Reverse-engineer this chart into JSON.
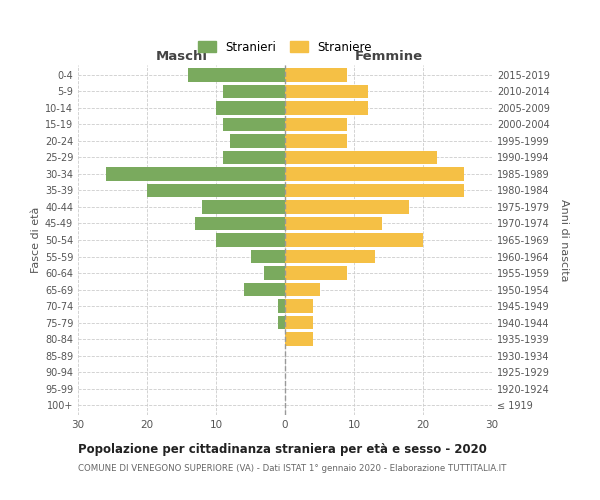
{
  "age_groups": [
    "100+",
    "95-99",
    "90-94",
    "85-89",
    "80-84",
    "75-79",
    "70-74",
    "65-69",
    "60-64",
    "55-59",
    "50-54",
    "45-49",
    "40-44",
    "35-39",
    "30-34",
    "25-29",
    "20-24",
    "15-19",
    "10-14",
    "5-9",
    "0-4"
  ],
  "birth_years": [
    "≤ 1919",
    "1920-1924",
    "1925-1929",
    "1930-1934",
    "1935-1939",
    "1940-1944",
    "1945-1949",
    "1950-1954",
    "1955-1959",
    "1960-1964",
    "1965-1969",
    "1970-1974",
    "1975-1979",
    "1980-1984",
    "1985-1989",
    "1990-1994",
    "1995-1999",
    "2000-2004",
    "2005-2009",
    "2010-2014",
    "2015-2019"
  ],
  "males": [
    0,
    0,
    0,
    0,
    0,
    1,
    1,
    6,
    3,
    5,
    10,
    13,
    12,
    20,
    26,
    9,
    8,
    9,
    10,
    9,
    14
  ],
  "females": [
    0,
    0,
    0,
    0,
    4,
    4,
    4,
    5,
    9,
    13,
    20,
    14,
    18,
    26,
    26,
    22,
    9,
    9,
    12,
    12,
    9
  ],
  "male_color": "#7aaa5e",
  "female_color": "#f5c045",
  "background_color": "#ffffff",
  "grid_color": "#cccccc",
  "title": "Popolazione per cittadinanza straniera per età e sesso - 2020",
  "subtitle": "COMUNE DI VENEGONO SUPERIORE (VA) - Dati ISTAT 1° gennaio 2020 - Elaborazione TUTTITALIA.IT",
  "xlabel_left": "Maschi",
  "xlabel_right": "Femmine",
  "ylabel_left": "Fasce di età",
  "ylabel_right": "Anni di nascita",
  "legend_male": "Stranieri",
  "legend_female": "Straniere",
  "xlim": 30,
  "bar_height": 0.82
}
